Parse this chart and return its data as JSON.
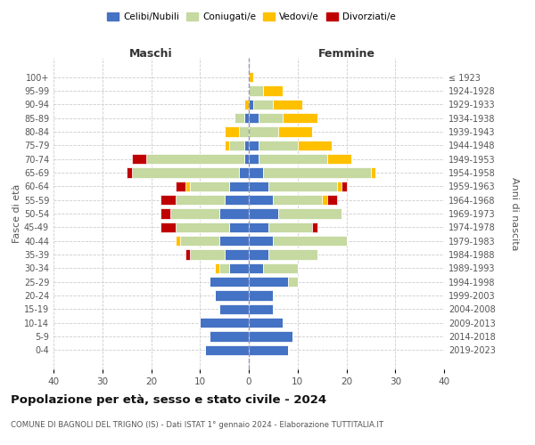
{
  "age_groups": [
    "0-4",
    "5-9",
    "10-14",
    "15-19",
    "20-24",
    "25-29",
    "30-34",
    "35-39",
    "40-44",
    "45-49",
    "50-54",
    "55-59",
    "60-64",
    "65-69",
    "70-74",
    "75-79",
    "80-84",
    "85-89",
    "90-94",
    "95-99",
    "100+"
  ],
  "birth_years": [
    "2019-2023",
    "2014-2018",
    "2009-2013",
    "2004-2008",
    "1999-2003",
    "1994-1998",
    "1989-1993",
    "1984-1988",
    "1979-1983",
    "1974-1978",
    "1969-1973",
    "1964-1968",
    "1959-1963",
    "1954-1958",
    "1949-1953",
    "1944-1948",
    "1939-1943",
    "1934-1938",
    "1929-1933",
    "1924-1928",
    "≤ 1923"
  ],
  "colors": {
    "celibi": "#4472c4",
    "coniugati": "#c5d9a0",
    "vedovi": "#ffc000",
    "divorziati": "#c00000"
  },
  "maschi": {
    "celibi": [
      9,
      8,
      10,
      6,
      7,
      8,
      4,
      5,
      6,
      4,
      6,
      5,
      4,
      2,
      1,
      1,
      0,
      1,
      0,
      0,
      0
    ],
    "coniugati": [
      0,
      0,
      0,
      0,
      0,
      0,
      2,
      7,
      8,
      11,
      10,
      10,
      8,
      22,
      20,
      3,
      2,
      2,
      0,
      0,
      0
    ],
    "vedovi": [
      0,
      0,
      0,
      0,
      0,
      0,
      1,
      0,
      1,
      0,
      0,
      0,
      1,
      0,
      0,
      1,
      3,
      0,
      1,
      0,
      0
    ],
    "divorziati": [
      0,
      0,
      0,
      0,
      0,
      0,
      0,
      1,
      0,
      3,
      2,
      3,
      2,
      1,
      3,
      0,
      0,
      0,
      0,
      0,
      0
    ]
  },
  "femmine": {
    "celibi": [
      8,
      9,
      7,
      5,
      5,
      8,
      3,
      4,
      5,
      4,
      6,
      5,
      4,
      3,
      2,
      2,
      0,
      2,
      1,
      0,
      0
    ],
    "coniugati": [
      0,
      0,
      0,
      0,
      0,
      2,
      7,
      10,
      15,
      9,
      13,
      10,
      14,
      22,
      14,
      8,
      6,
      5,
      4,
      3,
      0
    ],
    "vedovi": [
      0,
      0,
      0,
      0,
      0,
      0,
      0,
      0,
      0,
      0,
      0,
      1,
      1,
      1,
      5,
      7,
      7,
      7,
      6,
      4,
      1
    ],
    "divorziati": [
      0,
      0,
      0,
      0,
      0,
      0,
      0,
      0,
      0,
      1,
      0,
      2,
      1,
      0,
      0,
      0,
      0,
      0,
      0,
      0,
      0
    ]
  },
  "xlim": 40,
  "xticks": [
    -40,
    -30,
    -20,
    -10,
    0,
    10,
    20,
    30,
    40
  ],
  "xtick_labels": [
    "40",
    "30",
    "20",
    "10",
    "0",
    "10",
    "20",
    "30",
    "40"
  ],
  "title": "Popolazione per età, sesso e stato civile - 2024",
  "subtitle": "COMUNE DI BAGNOLI DEL TRIGNO (IS) - Dati ISTAT 1° gennaio 2024 - Elaborazione TUTTITALIA.IT",
  "ylabel_left": "Fasce di età",
  "ylabel_right": "Anni di nascita",
  "label_maschi": "Maschi",
  "label_femmine": "Femmine",
  "legend_labels": [
    "Celibi/Nubili",
    "Coniugati/e",
    "Vedovi/e",
    "Divorziati/e"
  ],
  "background_color": "#ffffff",
  "grid_color": "#cccccc"
}
